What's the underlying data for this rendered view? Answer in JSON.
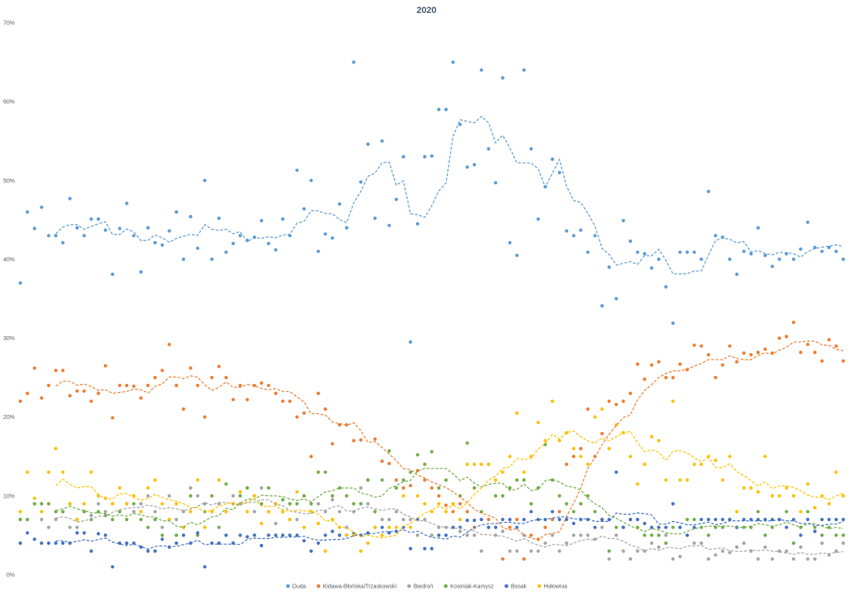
{
  "chart_data": {
    "type": "scatter",
    "title": "2020",
    "xlabel": "",
    "ylabel": "",
    "ylim": [
      0,
      70
    ],
    "y_ticks": [
      "0%",
      "10%",
      "20%",
      "30%",
      "40%",
      "50%",
      "60%",
      "70%"
    ],
    "grid": false,
    "legend_position": "bottom",
    "trendline": {
      "type": "moving_average",
      "period": 6
    },
    "series": [
      {
        "name": "Duda",
        "color": "#5B9BD5",
        "values": [
          37.0,
          46.0,
          43.9,
          46.6,
          43.0,
          43.0,
          42.1,
          47.7,
          44.0,
          43.0,
          45.1,
          45.1,
          43.7,
          38.1,
          43.9,
          47.1,
          43.0,
          38.4,
          44.0,
          42.1,
          41.8,
          43.6,
          46.0,
          40.0,
          45.4,
          41.4,
          50.0,
          40.0,
          45.2,
          40.9,
          42.0,
          43.0,
          42.4,
          42.8,
          44.9,
          42.0,
          41.2,
          45.1,
          43.0,
          51.3,
          46.4,
          50.0,
          41.0,
          43.2,
          42.7,
          47.0,
          44.0,
          65.0,
          49.8,
          54.6,
          45.2,
          55.0,
          44.3,
          47.6,
          53.0,
          29.5,
          44.5,
          53.0,
          53.1,
          59.0,
          59.0,
          65.0,
          57.1,
          51.7,
          52.0,
          64.0,
          54.0,
          49.7,
          63.0,
          42.1,
          40.5,
          64.0,
          54.0,
          45.1,
          49.2,
          52.7,
          51.0,
          43.6,
          43.0,
          43.7,
          40.9,
          43.0,
          34.1,
          39.0,
          35.0,
          44.9,
          42.3,
          40.9,
          40.7,
          38.9,
          40.0,
          36.5,
          31.9,
          40.9,
          40.9,
          40.9,
          40.0,
          48.6,
          43.0,
          42.8,
          40.0,
          38.1,
          41.0,
          40.7,
          44.0,
          40.5,
          39.1,
          40.0,
          40.7,
          40.0,
          41.3,
          44.7,
          41.5,
          41.0,
          41.5,
          41.0,
          40.0
        ]
      },
      {
        "name": "Kidawa-Błońska/Trzaskowski",
        "color": "#ED7D31",
        "values": [
          22.0,
          23.0,
          26.2,
          22.4,
          24.0,
          25.9,
          25.9,
          22.7,
          23.3,
          23.3,
          22.0,
          23.0,
          26.5,
          19.9,
          24.0,
          24.0,
          23.9,
          22.4,
          24.0,
          25.0,
          25.9,
          29.2,
          24.0,
          21.0,
          26.2,
          24.0,
          20.0,
          25.0,
          26.4,
          25.0,
          22.2,
          24.0,
          22.2,
          24.0,
          24.3,
          24.0,
          23.0,
          22.0,
          22.0,
          20.0,
          20.5,
          15.0,
          23.0,
          21.0,
          16.6,
          19.0,
          19.0,
          17.0,
          17.1,
          12.0,
          17.2,
          14.4,
          14.1,
          12.0,
          11.0,
          11.3,
          13.2,
          12.0,
          11.0,
          10.0,
          8.8,
          8.0,
          9.0,
          8.0,
          6.0,
          7.0,
          7.0,
          6.0,
          2.0,
          6.0,
          7.0,
          2.0,
          5.0,
          4.5,
          6.0,
          7.0,
          8.0,
          14.0,
          15.0,
          16.0,
          21.0,
          15.0,
          17.9,
          22.0,
          21.6,
          22.0,
          23.0,
          26.7,
          24.8,
          26.6,
          27.0,
          25.0,
          25.0,
          26.7,
          26.0,
          29.1,
          29.0,
          27.9,
          25.0,
          26.6,
          29.0,
          27.0,
          28.1,
          27.9,
          28.2,
          28.6,
          28.1,
          30.0,
          30.2,
          32.0,
          28.2,
          29.2,
          28.2,
          27.1,
          29.8,
          29.0,
          27.1
        ]
      },
      {
        "name": "Biedroń",
        "color": "#A5A5A5",
        "values": [
          7.0,
          7.0,
          9.0,
          7.0,
          6.0,
          7.0,
          8.0,
          6.0,
          6.0,
          8.0,
          7.5,
          9.0,
          8.0,
          9.0,
          8.0,
          9.0,
          8.0,
          9.0,
          10.0,
          8.0,
          6.0,
          10.0,
          7.0,
          8.0,
          11.0,
          10.0,
          9.0,
          8.0,
          9.0,
          8.0,
          10.0,
          9.0,
          11.0,
          8.0,
          11.0,
          8.0,
          6.5,
          8.0,
          7.0,
          7.0,
          10.0,
          8.0,
          9.0,
          8.0,
          9.5,
          8.0,
          6.0,
          8.0,
          11.0,
          9.0,
          8.0,
          7.0,
          7.0,
          8.0,
          7.0,
          7.0,
          5.0,
          7.0,
          5.0,
          6.0,
          6.0,
          6.0,
          5.5,
          5.0,
          5.0,
          3.0,
          6.0,
          5.0,
          5.5,
          3.0,
          3.0,
          5.0,
          3.0,
          3.0,
          4.0,
          5.0,
          3.0,
          4.0,
          5.0,
          5.0,
          5.0,
          4.5,
          6.0,
          2.0,
          5.0,
          3.0,
          2.0,
          3.0,
          3.0,
          4.0,
          3.5,
          5.0,
          2.0,
          2.3,
          5.0,
          4.0,
          4.0,
          2.0,
          2.5,
          3.0,
          2.8,
          3.5,
          4.0,
          3.0,
          2.0,
          3.5,
          2.0,
          3.0,
          3.0,
          2.0,
          3.5,
          2.0,
          2.0,
          4.0,
          2.5,
          3.0,
          4.0
        ]
      },
      {
        "name": "Kosiniak-Kamysz",
        "color": "#70AD47",
        "values": [
          7.0,
          7.0,
          9.0,
          9.0,
          9.0,
          8.0,
          8.0,
          9.0,
          7.0,
          8.0,
          7.0,
          8.0,
          7.5,
          7.0,
          8.0,
          7.0,
          9.0,
          7.0,
          6.0,
          7.0,
          5.0,
          7.0,
          5.0,
          6.0,
          10.0,
          5.0,
          8.0,
          10.0,
          6.0,
          11.5,
          9.0,
          10.0,
          11.0,
          10.0,
          9.0,
          11.0,
          9.0,
          9.5,
          9.0,
          9.0,
          10.0,
          9.0,
          13.0,
          13.0,
          10.0,
          11.0,
          10.0,
          9.0,
          9.0,
          12.0,
          8.0,
          12.0,
          15.7,
          11.0,
          12.0,
          13.0,
          15.2,
          14.0,
          15.6,
          11.0,
          12.0,
          9.0,
          10.0,
          16.7,
          11.0,
          8.0,
          14.0,
          10.0,
          10.0,
          11.0,
          12.0,
          12.0,
          9.0,
          11.0,
          16.5,
          12.0,
          10.0,
          9.0,
          8.0,
          9.0,
          10.0,
          8.0,
          7.0,
          3.0,
          6.0,
          6.0,
          7.0,
          6.0,
          5.0,
          5.0,
          5.0,
          4.0,
          6.0,
          6.0,
          7.0,
          7.0,
          6.0,
          5.0,
          6.0,
          6.0,
          7.0,
          6.0,
          6.0,
          6.0,
          8.0,
          5.0,
          6.0,
          7.0,
          8.0,
          4.0,
          6.0,
          8.0,
          6.0,
          5.0,
          6.0,
          5.0,
          5.0
        ]
      },
      {
        "name": "Bosak",
        "color": "#4472C4",
        "values": [
          4.0,
          5.3,
          4.5,
          4.0,
          4.0,
          4.0,
          4.0,
          4.0,
          5.3,
          5.3,
          3.0,
          5.2,
          5.0,
          1.0,
          4.0,
          4.0,
          4.0,
          3.5,
          3.0,
          3.0,
          4.5,
          3.5,
          4.0,
          5.0,
          4.0,
          5.3,
          1.0,
          4.0,
          4.0,
          5.0,
          4.0,
          5.0,
          4.8,
          5.0,
          3.7,
          5.0,
          5.0,
          5.0,
          5.0,
          5.0,
          4.3,
          3.0,
          4.0,
          5.0,
          5.5,
          5.0,
          5.0,
          5.2,
          5.0,
          5.3,
          6.0,
          6.0,
          5.3,
          5.5,
          6.0,
          3.3,
          7.0,
          3.3,
          3.3,
          5.0,
          5.0,
          6.0,
          6.0,
          6.9,
          6.9,
          7.0,
          6.0,
          6.0,
          7.0,
          7.0,
          6.0,
          7.0,
          8.0,
          7.0,
          7.0,
          8.0,
          7.0,
          7.0,
          6.5,
          7.0,
          7.0,
          6.0,
          7.0,
          7.0,
          13.0,
          6.0,
          7.0,
          7.0,
          6.5,
          6.0,
          6.0,
          6.0,
          9.0,
          6.0,
          5.0,
          6.0,
          7.0,
          7.0,
          7.0,
          7.0,
          7.0,
          6.0,
          7.0,
          7.0,
          7.0,
          7.0,
          7.0,
          7.0,
          6.0,
          7.0,
          5.0,
          7.0,
          5.5,
          7.0,
          7.0,
          7.0,
          7.0
        ]
      },
      {
        "name": "Hołownia",
        "color": "#FFC000",
        "values": [
          8.0,
          13.0,
          9.7,
          8.0,
          13.0,
          16.0,
          13.0,
          9.0,
          7.0,
          9.0,
          13.0,
          10.0,
          9.7,
          9.0,
          11.0,
          9.0,
          10.0,
          8.0,
          11.0,
          12.0,
          9.0,
          7.0,
          9.0,
          6.0,
          8.0,
          12.0,
          6.0,
          8.0,
          12.0,
          8.0,
          9.0,
          10.5,
          8.0,
          10.0,
          6.5,
          8.0,
          9.0,
          8.0,
          7.0,
          10.5,
          6.0,
          8.0,
          6.5,
          3.0,
          7.0,
          6.0,
          5.0,
          5.0,
          3.0,
          4.0,
          6.0,
          5.0,
          6.0,
          6.0,
          10.0,
          6.0,
          10.0,
          9.0,
          8.0,
          9.0,
          8.0,
          9.0,
          7.0,
          14.0,
          14.0,
          14.0,
          14.0,
          12.0,
          13.0,
          15.0,
          20.5,
          13.0,
          15.0,
          19.3,
          17.0,
          22.0,
          17.0,
          18.0,
          16.0,
          15.0,
          14.0,
          20.0,
          21.0,
          16.0,
          19.0,
          18.0,
          15.0,
          11.5,
          14.0,
          17.5,
          17.0,
          12.0,
          22.0,
          12.0,
          12.0,
          14.0,
          14.0,
          15.0,
          14.5,
          12.0,
          15.0,
          8.0,
          11.0,
          11.0,
          10.5,
          15.0,
          10.0,
          10.0,
          11.0,
          10.0,
          8.0,
          11.5,
          8.5,
          10.0,
          9.0,
          13.0,
          10.0
        ]
      }
    ]
  }
}
